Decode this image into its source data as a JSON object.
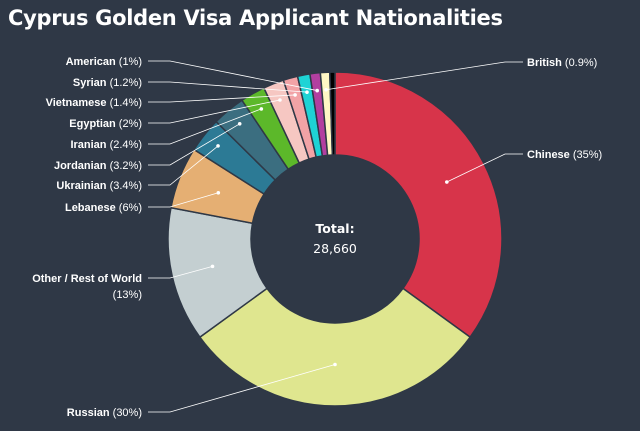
{
  "chart_data": {
    "type": "pie",
    "variant": "donut",
    "title": "Cyprus Golden Visa Applicant Nationalities",
    "center_label": "Total:",
    "center_value": "28,660",
    "slices": [
      {
        "name": "Chinese",
        "value": 35,
        "label": "(35%)",
        "color": "#d7344a"
      },
      {
        "name": "Russian",
        "value": 30,
        "label": "(30%)",
        "color": "#dfe68f"
      },
      {
        "name": "Other / Rest of World",
        "value": 13,
        "label": "(13%)",
        "color": "#c4cfd1"
      },
      {
        "name": "Lebanese",
        "value": 6,
        "label": "(6%)",
        "color": "#e5af73"
      },
      {
        "name": "Ukrainian",
        "value": 3.4,
        "label": "(3.4%)",
        "color": "#2c7a95"
      },
      {
        "name": "Jordanian",
        "value": 3.2,
        "label": "(3.2%)",
        "color": "#3b6e80"
      },
      {
        "name": "Iranian",
        "value": 2.4,
        "label": "(2.4%)",
        "color": "#5cb82a"
      },
      {
        "name": "Egyptian",
        "value": 2,
        "label": "(2%)",
        "color": "#f6c7c2"
      },
      {
        "name": "Vietnamese",
        "value": 1.4,
        "label": "(1.4%)",
        "color": "#f2a3a6"
      },
      {
        "name": "Syrian",
        "value": 1.2,
        "label": "(1.2%)",
        "color": "#1ed3d5"
      },
      {
        "name": "American",
        "value": 1,
        "label": "(1%)",
        "color": "#b23fa0"
      },
      {
        "name": "British",
        "value": 0.9,
        "label": "(0.9%)",
        "color": "#fff7c4"
      },
      {
        "name": "",
        "value": 0.5,
        "label": "",
        "color": "#000000"
      }
    ]
  }
}
